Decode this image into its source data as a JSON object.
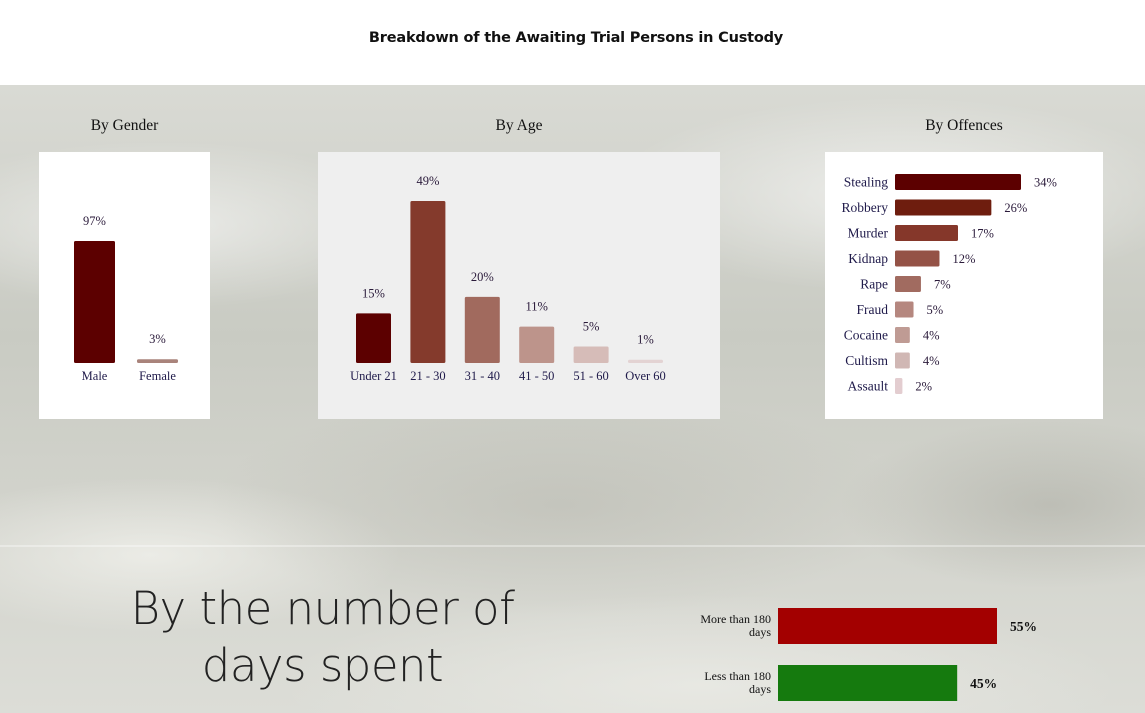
{
  "title": "Breakdown of the Awaiting Trial Persons in Custody",
  "sections": {
    "gender": "By Gender",
    "age": "By Age",
    "offences": "By Offences",
    "days": "By the number of days spent"
  },
  "chart_data": [
    {
      "type": "bar",
      "title": "By Gender",
      "categories": [
        "Male",
        "Female"
      ],
      "values": [
        97,
        3
      ],
      "labels": [
        "97%",
        "3%"
      ],
      "colors": [
        "#5c0000",
        "#a9837b"
      ]
    },
    {
      "type": "bar",
      "title": "By Age",
      "categories": [
        "Under 21",
        "21 - 30",
        "31 - 40",
        "41 - 50",
        "51 - 60",
        "Over 60"
      ],
      "values": [
        15,
        49,
        20,
        11,
        5,
        1
      ],
      "labels": [
        "15%",
        "49%",
        "20%",
        "11%",
        "5%",
        "1%"
      ],
      "colors": [
        "#5c0000",
        "#843a2c",
        "#a16a5e",
        "#bd948b",
        "#d6bcb8",
        "#e3d3d3"
      ]
    },
    {
      "type": "bar",
      "orientation": "horizontal",
      "title": "By Offences",
      "categories": [
        "Stealing",
        "Robbery",
        "Murder",
        "Kidnap",
        "Rape",
        "Fraud",
        "Cocaine",
        "Cultism",
        "Assault"
      ],
      "values": [
        34,
        26,
        17,
        12,
        7,
        5,
        4,
        4,
        2
      ],
      "labels": [
        "34%",
        "26%",
        "17%",
        "12%",
        "7%",
        "5%",
        "4%",
        "4%",
        "2%"
      ],
      "colors": [
        "#5c0000",
        "#6e1d0e",
        "#85372a",
        "#945246",
        "#a16b60",
        "#b5877f",
        "#bf9b94",
        "#d0b7b4",
        "#e3cdd0"
      ]
    },
    {
      "type": "bar",
      "orientation": "horizontal",
      "title": "By the number of days spent",
      "categories": [
        "More than 180 days",
        "Less than 180 days"
      ],
      "category_lines": [
        [
          "More than 180",
          "days"
        ],
        [
          "Less than 180",
          "days"
        ]
      ],
      "values": [
        55,
        45
      ],
      "labels": [
        "55%",
        "45%"
      ],
      "colors": [
        "#a30000",
        "#157a0e"
      ]
    }
  ]
}
